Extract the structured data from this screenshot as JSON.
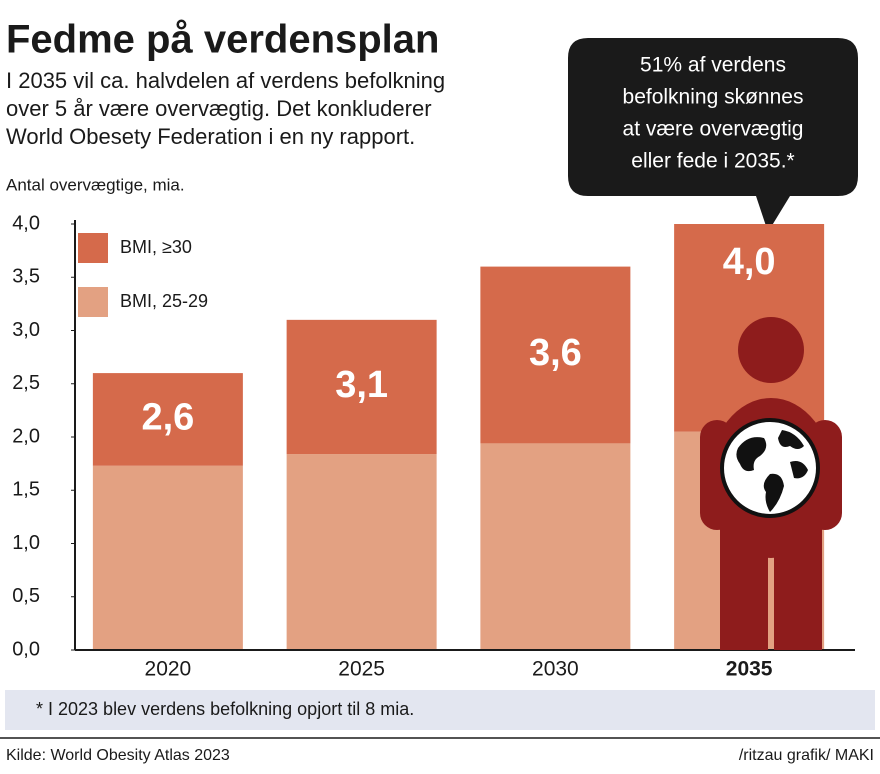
{
  "chart_data": {
    "type": "stacked_bar",
    "title": "Fedme på verdensplan",
    "subtitle": [
      "I 2035 vil ca. halvdelen af verdens befolkning",
      "over 5 år være overvægtig. Det konkluderer",
      "World Obesety Federation i en ny rapport."
    ],
    "callout": [
      "51% af verdens",
      "befolkning skønnes",
      "at være overvægtig",
      "eller fede i 2035.*"
    ],
    "y_label": "Antal overvægtige, mia.",
    "categories": [
      "2020",
      "2025",
      "2030",
      "2035"
    ],
    "series": [
      {
        "name": "BMI, 25-29",
        "color": "#e3a182",
        "values": [
          1.73,
          1.84,
          1.94,
          2.05
        ]
      },
      {
        "name": "BMI, ≥30",
        "color": "#d56a4b",
        "values": [
          0.87,
          1.26,
          1.66,
          1.95
        ]
      }
    ],
    "totals": {
      "values": [
        2.6,
        3.1,
        3.6,
        4.0
      ],
      "value_labels": [
        "2,6",
        "3,1",
        "3,6",
        "4,0"
      ]
    },
    "ylim": [
      0,
      4
    ],
    "yticks": [
      {
        "value": 0,
        "label": "0,0"
      },
      {
        "value": 0.5,
        "label": "0,5"
      },
      {
        "value": 1,
        "label": "1,0"
      },
      {
        "value": 1.5,
        "label": "1,5"
      },
      {
        "value": 2,
        "label": "2,0"
      },
      {
        "value": 2.5,
        "label": "2,5"
      },
      {
        "value": 3,
        "label": "3,0"
      },
      {
        "value": 3.5,
        "label": "3,5"
      },
      {
        "value": 4,
        "label": "4,0"
      }
    ],
    "grid": false,
    "footnote": "*  I 2023 blev verdens befolkning opjort til 8 mia.",
    "source": "Kilde: World Obesity Atlas 2023",
    "credit": "/ritzau grafik/ MAKI"
  }
}
